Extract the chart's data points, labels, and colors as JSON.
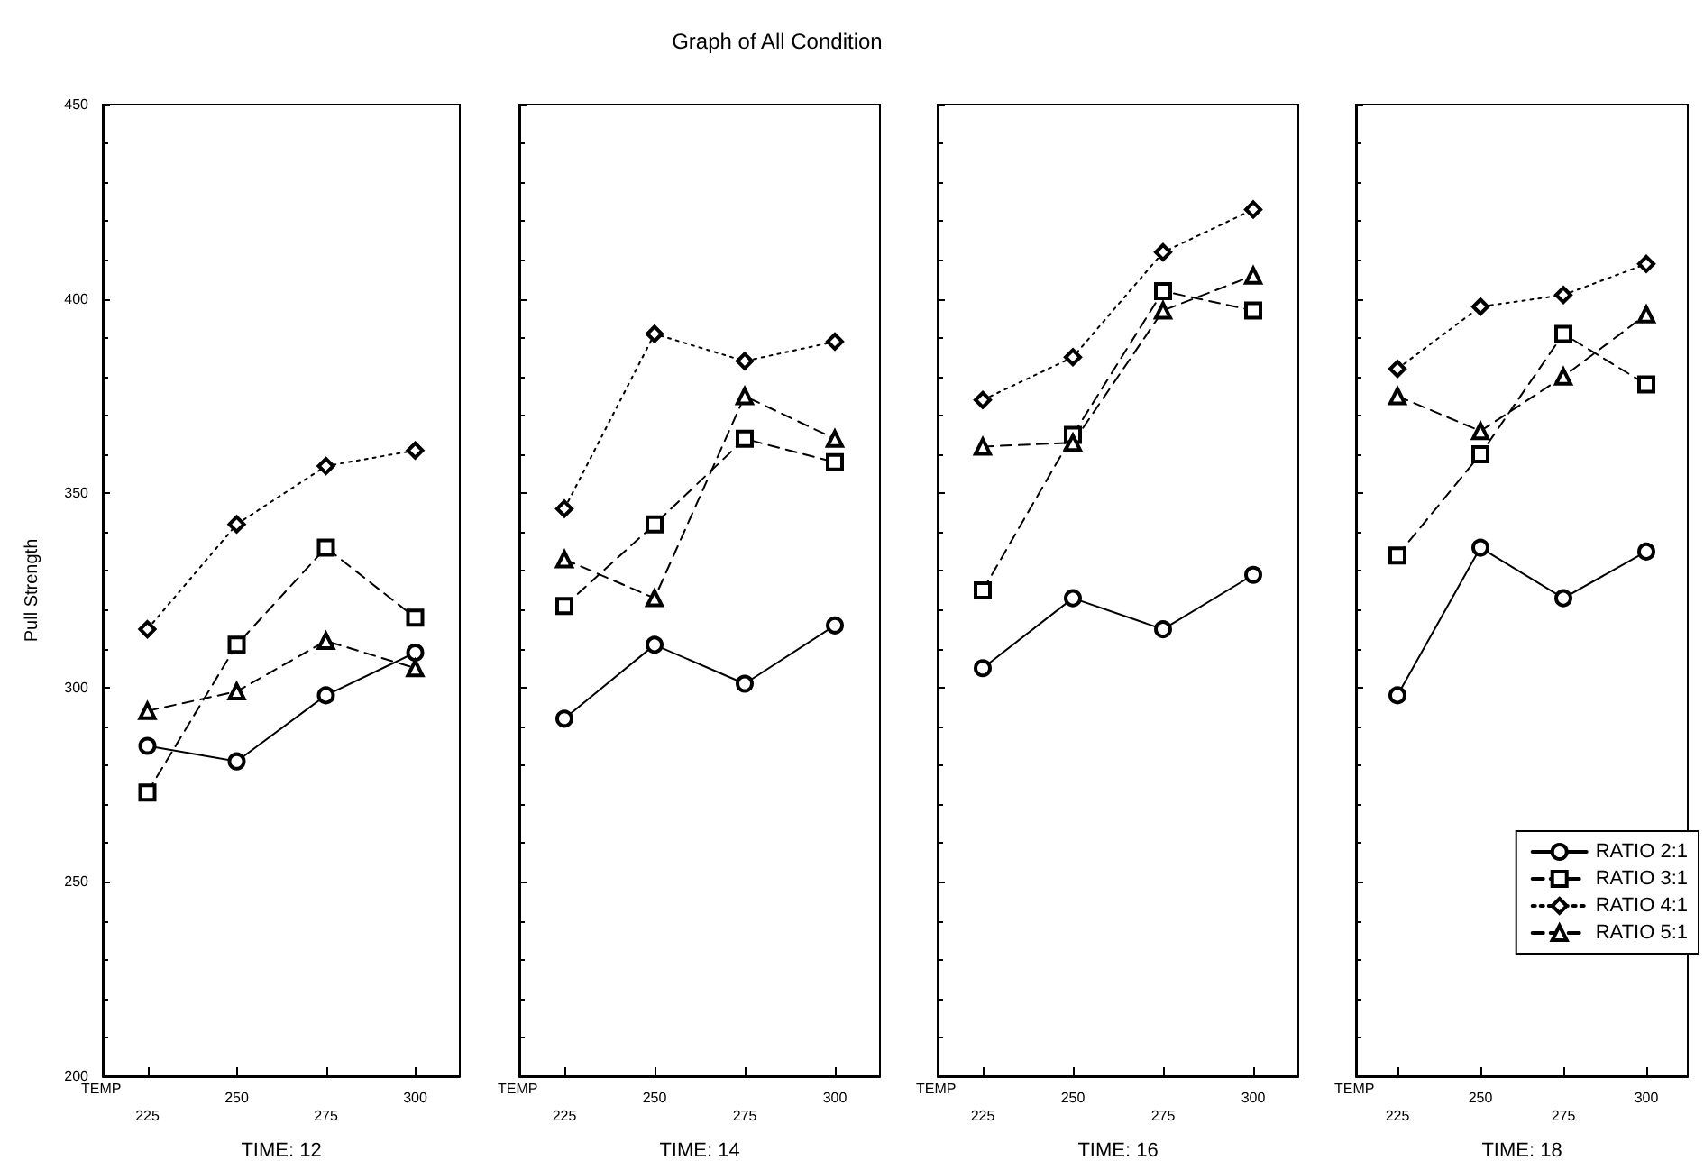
{
  "chart_data": [
    {
      "type": "line",
      "xlabel": "TIME: 12",
      "ylabel": "Pull Strength",
      "annotations": [
        "TEMP"
      ],
      "categories": [
        "225",
        "250",
        "275",
        "300"
      ],
      "ylim": [
        200,
        450
      ],
      "yticks": [
        200,
        250,
        300,
        350,
        400,
        450
      ],
      "grid": false,
      "legend": false,
      "series": [
        {
          "color": "#000000",
          "marker": "circle",
          "line_style": "solid",
          "values": [
            285,
            281,
            298,
            309
          ]
        },
        {
          "color": "#000000",
          "marker": "square",
          "line_style": "dashed",
          "values": [
            273,
            311,
            336,
            318
          ]
        },
        {
          "color": "#000000",
          "marker": "diamond",
          "line_style": "dotted",
          "values": [
            315,
            342,
            357,
            361
          ]
        },
        {
          "color": "#000000",
          "marker": "triangle",
          "line_style": "dashed",
          "values": [
            294,
            299,
            312,
            305
          ]
        }
      ]
    },
    {
      "type": "line",
      "title": "Graph of All Condition",
      "xlabel": "TIME: 14",
      "annotations": [
        "TEMP"
      ],
      "categories": [
        "225",
        "250",
        "275",
        "300"
      ],
      "ylim": [
        200,
        450
      ],
      "yticks": [
        200,
        250,
        300,
        350,
        400,
        450
      ],
      "tick_labels": "x",
      "grid": false,
      "legend": false,
      "series": [
        {
          "color": "#000000",
          "marker": "circle",
          "line_style": "solid",
          "values": [
            292,
            311,
            301,
            316
          ]
        },
        {
          "color": "#000000",
          "marker": "square",
          "line_style": "dashed",
          "values": [
            321,
            342,
            364,
            358
          ]
        },
        {
          "color": "#000000",
          "marker": "diamond",
          "line_style": "dotted",
          "values": [
            346,
            391,
            384,
            389
          ]
        },
        {
          "color": "#000000",
          "marker": "triangle",
          "line_style": "dashed",
          "values": [
            333,
            323,
            375,
            364
          ]
        }
      ]
    },
    {
      "type": "line",
      "xlabel": "TIME: 16",
      "annotations": [
        "TEMP"
      ],
      "categories": [
        "225",
        "250",
        "275",
        "300"
      ],
      "ylim": [
        200,
        450
      ],
      "yticks": [
        200,
        250,
        300,
        350,
        400,
        450
      ],
      "tick_labels": "x",
      "grid": false,
      "legend": false,
      "series": [
        {
          "color": "#000000",
          "marker": "circle",
          "line_style": "solid",
          "values": [
            305,
            323,
            315,
            329
          ]
        },
        {
          "color": "#000000",
          "marker": "square",
          "line_style": "dashed",
          "values": [
            325,
            365,
            402,
            397
          ]
        },
        {
          "color": "#000000",
          "marker": "diamond",
          "line_style": "dotted",
          "values": [
            374,
            385,
            412,
            423
          ]
        },
        {
          "color": "#000000",
          "marker": "triangle",
          "line_style": "dashed",
          "values": [
            362,
            363,
            397,
            406
          ]
        }
      ]
    },
    {
      "type": "line",
      "xlabel": "TIME: 18",
      "annotations": [
        "TEMP"
      ],
      "categories": [
        "225",
        "250",
        "275",
        "300"
      ],
      "ylim": [
        200,
        450
      ],
      "yticks": [
        200,
        250,
        300,
        350,
        400,
        450
      ],
      "tick_labels": "x",
      "grid": false,
      "legend": "bottom right",
      "series": [
        {
          "name": "RATIO 2:1",
          "color": "#000000",
          "marker": "circle",
          "line_style": "solid",
          "values": [
            298,
            336,
            323,
            335
          ]
        },
        {
          "name": "RATIO 3:1",
          "color": "#000000",
          "marker": "square",
          "line_style": "dashed",
          "values": [
            334,
            360,
            391,
            378
          ]
        },
        {
          "name": "RATIO 4:1",
          "color": "#000000",
          "marker": "diamond",
          "line_style": "dotted",
          "values": [
            382,
            398,
            401,
            409
          ]
        },
        {
          "name": "RATIO 5:1",
          "color": "#000000",
          "marker": "triangle",
          "line_style": "dashed",
          "values": [
            375,
            366,
            380,
            396
          ]
        }
      ]
    }
  ]
}
